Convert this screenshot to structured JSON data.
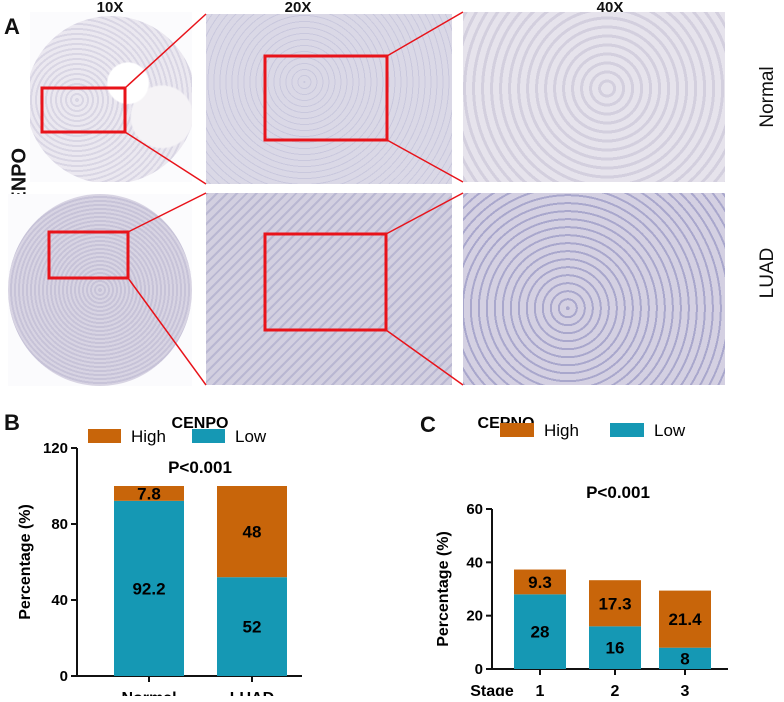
{
  "panel_a": {
    "letter": "A",
    "protein": "CENPO",
    "magnifications": [
      "10X",
      "20X",
      "40X"
    ],
    "rows": [
      "Normal",
      "LUAD"
    ]
  },
  "panel_b": {
    "letter": "B"
  },
  "panel_c": {
    "letter": "C"
  },
  "colors": {
    "high": "#c8650a",
    "low": "#1598b4",
    "zoom_box": "#e8131a"
  },
  "chart_data": [
    {
      "type": "bar",
      "stacked": true,
      "title": "CENPO",
      "ylabel": "Percentage (%)",
      "xlabel": "",
      "ylim": [
        0,
        120
      ],
      "yticks": [
        0,
        40,
        80,
        120
      ],
      "categories": [
        "Normal",
        "LUAD"
      ],
      "series": [
        {
          "name": "Low",
          "values": [
            92.2,
            52
          ]
        },
        {
          "name": "High",
          "values": [
            7.8,
            48
          ]
        }
      ],
      "data_labels": {
        "Low": [
          "92.2",
          "52"
        ],
        "High": [
          "7.8",
          "48"
        ]
      },
      "annotation": "P<0.001",
      "legend": "top"
    },
    {
      "type": "bar",
      "stacked": true,
      "title": "CEPNO",
      "ylabel": "Percentage (%)",
      "xlabel": "Stage",
      "ylim": [
        0,
        60
      ],
      "yticks": [
        0,
        20,
        40,
        60
      ],
      "categories": [
        "1",
        "2",
        "3"
      ],
      "series": [
        {
          "name": "Low",
          "values": [
            28,
            16,
            8
          ]
        },
        {
          "name": "High",
          "values": [
            9.3,
            17.3,
            21.4
          ]
        }
      ],
      "data_labels": {
        "Low": [
          "28",
          "16",
          "8"
        ],
        "High": [
          "9.3",
          "17.3",
          "21.4"
        ]
      },
      "annotation": "P<0.001",
      "legend": "top"
    }
  ]
}
